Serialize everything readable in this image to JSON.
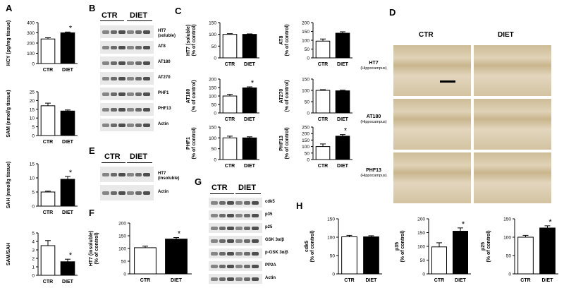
{
  "panels": {
    "A": "A",
    "B": "B",
    "C": "C",
    "D": "D",
    "E": "E",
    "F": "F",
    "G": "G",
    "H": "H"
  },
  "blots": {
    "B": {
      "groups": [
        "CTR",
        "DIET"
      ],
      "rows": [
        "HT7\n(soluble)",
        "AT8",
        "AT180",
        "AT270",
        "PHF1",
        "PHF13",
        "Actin"
      ]
    },
    "E": {
      "groups": [
        "CTR",
        "DIET"
      ],
      "rows": [
        "HT7\n(insoluble)",
        "Actin"
      ]
    },
    "G": {
      "groups": [
        "CTR",
        "DIET"
      ],
      "rows": [
        "cdk5",
        "p35",
        "p25",
        "GSK 3α/β",
        "p-GSK 3α/β",
        "PP2A",
        "Actin"
      ]
    }
  },
  "micrographs": {
    "columns": [
      "CTR",
      "DIET"
    ],
    "rows": [
      {
        "marker": "HT7",
        "region": "(Hippocampus)"
      },
      {
        "marker": "AT180",
        "region": "(Hippocampus)"
      },
      {
        "marker": "PHF13",
        "region": "(Hippocampus)"
      }
    ]
  },
  "colors": {
    "ctr_fill": "#ffffff",
    "diet_fill": "#000000",
    "bar_stroke": "#000000",
    "tissue": "#d6c6a4"
  },
  "chart_data": [
    {
      "id": "A1",
      "type": "bar",
      "categories": [
        "CTR",
        "DIET"
      ],
      "values": [
        240,
        300
      ],
      "errors": [
        12,
        8
      ],
      "ylabel": "HCY (pg/mg tissue)",
      "ylim": [
        0,
        400
      ],
      "yticks": [
        0,
        100,
        200,
        300,
        400
      ],
      "sig": [
        "",
        "*"
      ]
    },
    {
      "id": "A2",
      "type": "bar",
      "categories": [
        "CTR",
        "DIET"
      ],
      "values": [
        17,
        14
      ],
      "errors": [
        1.5,
        0.6
      ],
      "ylabel": "SAM (nmol/g tissue)",
      "ylim": [
        0,
        25
      ],
      "yticks": [
        0,
        5,
        10,
        15,
        20,
        25
      ],
      "sig": [
        "",
        ""
      ]
    },
    {
      "id": "A3",
      "type": "bar",
      "categories": [
        "CTR",
        "DIET"
      ],
      "values": [
        5,
        9.5
      ],
      "errors": [
        0.3,
        1.0
      ],
      "ylabel": "SAH (nmol/g tissue)",
      "ylim": [
        0,
        15
      ],
      "yticks": [
        0,
        5,
        10,
        15
      ],
      "sig": [
        "",
        "*"
      ]
    },
    {
      "id": "A4",
      "type": "bar",
      "categories": [
        "CTR",
        "DIET"
      ],
      "values": [
        3.5,
        1.6
      ],
      "errors": [
        0.6,
        0.3
      ],
      "ylabel": "SAM/SAH",
      "ylim": [
        0,
        5
      ],
      "yticks": [
        0,
        1,
        2,
        3,
        4,
        5
      ],
      "sig": [
        "",
        "*"
      ]
    },
    {
      "id": "C1",
      "type": "bar",
      "categories": [
        "CTR",
        "DIET"
      ],
      "values": [
        100,
        100
      ],
      "errors": [
        3,
        2
      ],
      "ylabel": "HT7 (soluble)\n(% of control)",
      "ylim": [
        0,
        150
      ],
      "yticks": [
        0,
        50,
        100,
        150
      ],
      "sig": [
        "",
        ""
      ]
    },
    {
      "id": "C2",
      "type": "bar",
      "categories": [
        "CTR",
        "DIET"
      ],
      "values": [
        95,
        140
      ],
      "errors": [
        12,
        8
      ],
      "ylabel": "AT8\n(% of control)",
      "ylim": [
        0,
        200
      ],
      "yticks": [
        0,
        50,
        100,
        150,
        200
      ],
      "sig": [
        "",
        ""
      ]
    },
    {
      "id": "C3",
      "type": "bar",
      "categories": [
        "CTR",
        "DIET"
      ],
      "values": [
        100,
        148
      ],
      "errors": [
        10,
        6
      ],
      "ylabel": "AT180\n(% of control)",
      "ylim": [
        0,
        200
      ],
      "yticks": [
        0,
        50,
        100,
        150,
        200
      ],
      "sig": [
        "",
        "*"
      ]
    },
    {
      "id": "C4",
      "type": "bar",
      "categories": [
        "CTR",
        "DIET"
      ],
      "values": [
        100,
        98
      ],
      "errors": [
        3,
        3
      ],
      "ylabel": "AT270\n(% of control)",
      "ylim": [
        0,
        150
      ],
      "yticks": [
        0,
        50,
        100,
        150
      ],
      "sig": [
        "",
        ""
      ]
    },
    {
      "id": "C5",
      "type": "bar",
      "categories": [
        "CTR",
        "DIET"
      ],
      "values": [
        100,
        100
      ],
      "errors": [
        8,
        5
      ],
      "ylabel": "PHF1\n(% of control)",
      "ylim": [
        0,
        150
      ],
      "yticks": [
        0,
        50,
        100,
        150
      ],
      "sig": [
        "",
        ""
      ]
    },
    {
      "id": "C6",
      "type": "bar",
      "categories": [
        "CTR",
        "DIET"
      ],
      "values": [
        100,
        180
      ],
      "errors": [
        20,
        12
      ],
      "ylabel": "PHF13\n(% of control)",
      "ylim": [
        0,
        250
      ],
      "yticks": [
        0,
        50,
        100,
        150,
        200,
        250
      ],
      "sig": [
        "",
        "*"
      ]
    },
    {
      "id": "F1",
      "type": "bar",
      "categories": [
        "CTR",
        "DIET"
      ],
      "values": [
        103,
        137
      ],
      "errors": [
        6,
        6
      ],
      "ylabel": "HT7 (insoluble)\n(% of control)",
      "ylim": [
        0,
        200
      ],
      "yticks": [
        0,
        50,
        100,
        150,
        200
      ],
      "sig": [
        "",
        "*"
      ]
    },
    {
      "id": "H1",
      "type": "bar",
      "categories": [
        "CTR",
        "DIET"
      ],
      "values": [
        101,
        101
      ],
      "errors": [
        4,
        3
      ],
      "ylabel": "cdk5\n(% of control)",
      "ylim": [
        0,
        150
      ],
      "yticks": [
        0,
        50,
        100,
        150
      ],
      "sig": [
        "",
        ""
      ]
    },
    {
      "id": "H2",
      "type": "bar",
      "categories": [
        "CTR",
        "DIET"
      ],
      "values": [
        98,
        155
      ],
      "errors": [
        15,
        12
      ],
      "ylabel": "p35\n(% of control)",
      "ylim": [
        0,
        200
      ],
      "yticks": [
        0,
        50,
        100,
        150,
        200
      ],
      "sig": [
        "",
        "*"
      ]
    },
    {
      "id": "H3",
      "type": "bar",
      "categories": [
        "CTR",
        "DIET"
      ],
      "values": [
        100,
        125
      ],
      "errors": [
        5,
        6
      ],
      "ylabel": "p25\n(% of control)",
      "ylim": [
        0,
        150
      ],
      "yticks": [
        0,
        50,
        100,
        150
      ],
      "sig": [
        "",
        "*"
      ]
    }
  ]
}
